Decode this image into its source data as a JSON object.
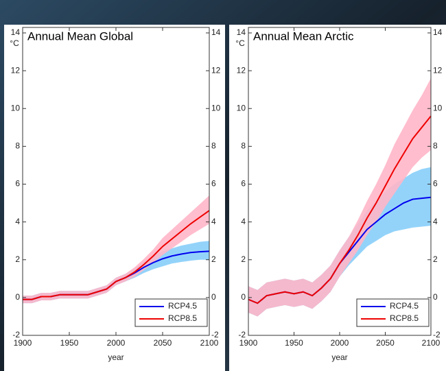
{
  "chart_data": [
    {
      "type": "line",
      "title": "Annual Mean Global",
      "y_unit": "°C",
      "xlabel": "year",
      "x": [
        1900,
        1910,
        1920,
        1930,
        1940,
        1950,
        1960,
        1970,
        1980,
        1990,
        2000,
        2010,
        2020,
        2030,
        2040,
        2050,
        2060,
        2070,
        2080,
        2090,
        2100
      ],
      "xlim": [
        1900,
        2100
      ],
      "xticks": [
        1900,
        1950,
        2000,
        2050,
        2100
      ],
      "ylim": [
        -2,
        14
      ],
      "yticks": [
        -2,
        0,
        2,
        4,
        6,
        8,
        10,
        12,
        14
      ],
      "legend": "lower-right",
      "series": [
        {
          "name": "RCP4.5",
          "color": "#0000ee",
          "band_color": "#87cefa",
          "values": [
            -0.1,
            -0.1,
            0.05,
            0.05,
            0.15,
            0.15,
            0.15,
            0.15,
            0.3,
            0.45,
            0.85,
            1.05,
            1.3,
            1.6,
            1.85,
            2.05,
            2.2,
            2.3,
            2.38,
            2.42,
            2.45
          ],
          "lower": [
            -0.3,
            -0.3,
            -0.15,
            -0.15,
            -0.05,
            -0.05,
            -0.05,
            -0.05,
            0.1,
            0.25,
            0.65,
            0.85,
            1.05,
            1.3,
            1.5,
            1.65,
            1.8,
            1.88,
            1.95,
            2.0,
            2.0
          ],
          "upper": [
            0.1,
            0.1,
            0.25,
            0.25,
            0.35,
            0.35,
            0.35,
            0.35,
            0.5,
            0.65,
            1.05,
            1.25,
            1.55,
            1.9,
            2.2,
            2.45,
            2.6,
            2.75,
            2.85,
            2.95,
            3.0
          ]
        },
        {
          "name": "RCP8.5",
          "color": "#ee0000",
          "band_color": "#ffb6c8",
          "values": [
            -0.1,
            -0.1,
            0.05,
            0.05,
            0.15,
            0.15,
            0.15,
            0.15,
            0.3,
            0.45,
            0.85,
            1.05,
            1.35,
            1.75,
            2.2,
            2.7,
            3.1,
            3.5,
            3.9,
            4.25,
            4.6
          ],
          "lower": [
            -0.3,
            -0.3,
            -0.15,
            -0.15,
            -0.05,
            -0.05,
            -0.05,
            -0.05,
            0.1,
            0.25,
            0.65,
            0.85,
            1.1,
            1.45,
            1.85,
            2.25,
            2.6,
            2.95,
            3.3,
            3.6,
            3.9
          ],
          "upper": [
            0.1,
            0.1,
            0.25,
            0.25,
            0.35,
            0.35,
            0.35,
            0.35,
            0.5,
            0.65,
            1.05,
            1.25,
            1.6,
            2.05,
            2.55,
            3.15,
            3.6,
            4.05,
            4.5,
            4.95,
            5.4
          ]
        }
      ]
    },
    {
      "type": "line",
      "title": "Annual Mean Arctic",
      "y_unit": "°C",
      "xlabel": "year",
      "x": [
        1900,
        1910,
        1920,
        1930,
        1940,
        1950,
        1960,
        1970,
        1980,
        1990,
        2000,
        2010,
        2020,
        2030,
        2040,
        2050,
        2060,
        2070,
        2080,
        2090,
        2100
      ],
      "xlim": [
        1900,
        2100
      ],
      "xticks": [
        1900,
        1950,
        2000,
        2050,
        2100
      ],
      "ylim": [
        -2,
        14
      ],
      "yticks": [
        -2,
        0,
        2,
        4,
        6,
        8,
        10,
        12,
        14
      ],
      "legend": "lower-right",
      "series": [
        {
          "name": "RCP4.5",
          "color": "#0000ee",
          "band_color": "#87cefa",
          "values": [
            -0.1,
            -0.3,
            0.1,
            0.2,
            0.3,
            0.2,
            0.3,
            0.1,
            0.5,
            1.0,
            1.8,
            2.4,
            3.0,
            3.6,
            4.0,
            4.4,
            4.7,
            5.0,
            5.2,
            5.25,
            5.3
          ],
          "lower": [
            -0.8,
            -1.0,
            -0.6,
            -0.5,
            -0.4,
            -0.5,
            -0.4,
            -0.6,
            -0.2,
            0.3,
            1.1,
            1.7,
            2.2,
            2.7,
            3.0,
            3.3,
            3.5,
            3.6,
            3.7,
            3.75,
            3.8
          ],
          "upper": [
            0.6,
            0.4,
            0.8,
            0.9,
            1.0,
            0.9,
            1.0,
            0.8,
            1.2,
            1.7,
            2.5,
            3.2,
            3.9,
            4.6,
            5.1,
            5.6,
            6.0,
            6.3,
            6.6,
            6.8,
            6.9
          ]
        },
        {
          "name": "RCP8.5",
          "color": "#ee0000",
          "band_color": "#ffb6c8",
          "values": [
            -0.1,
            -0.3,
            0.1,
            0.2,
            0.3,
            0.2,
            0.3,
            0.1,
            0.5,
            1.0,
            1.8,
            2.5,
            3.3,
            4.2,
            5.0,
            5.9,
            6.8,
            7.6,
            8.4,
            9.0,
            9.6
          ],
          "lower": [
            -0.8,
            -1.0,
            -0.6,
            -0.5,
            -0.4,
            -0.5,
            -0.4,
            -0.6,
            -0.2,
            0.3,
            1.1,
            1.8,
            2.5,
            3.3,
            4.0,
            4.8,
            5.5,
            6.2,
            6.9,
            7.4,
            7.8
          ],
          "upper": [
            0.6,
            0.4,
            0.8,
            0.9,
            1.0,
            0.9,
            1.0,
            0.8,
            1.2,
            1.7,
            2.5,
            3.2,
            4.1,
            5.1,
            6.0,
            7.0,
            8.1,
            9.0,
            9.9,
            10.7,
            11.6
          ]
        }
      ]
    }
  ]
}
